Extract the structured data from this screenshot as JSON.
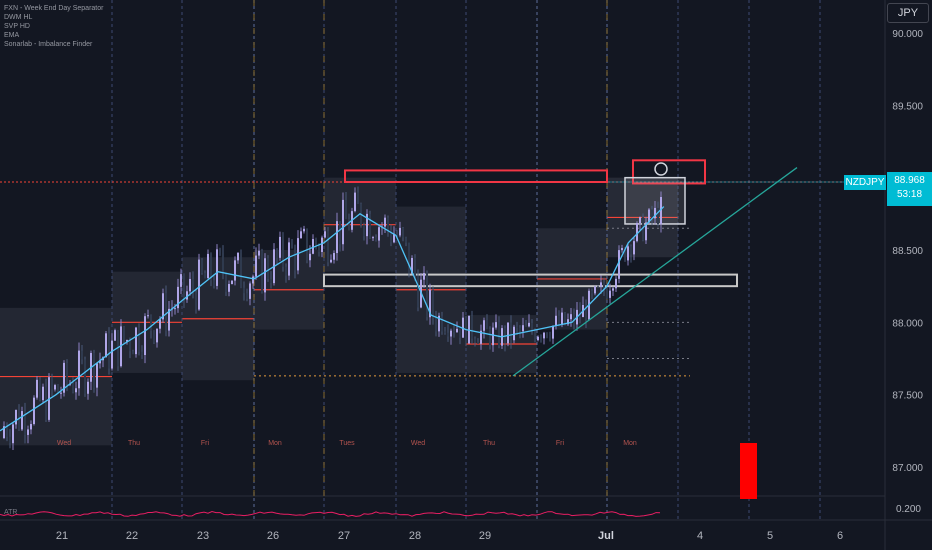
{
  "indicators": [
    "FXN - Week End Day Separator",
    "DWM HL",
    "SVP HD",
    "EMA",
    "Sonarlab - Imbalance Finder"
  ],
  "currency": "JPY",
  "symbol": "NZDJPY",
  "last_price": "88.968",
  "countdown": "53:18",
  "atr_label": "ATR",
  "chart_data": {
    "type": "candlestick",
    "title": "",
    "y_axis": {
      "ticks": [
        "90.000",
        "89.500",
        "89.000",
        "88.500",
        "88.000",
        "87.500",
        "87.000"
      ],
      "ylim": [
        86.85,
        90.1
      ]
    },
    "x_axis": {
      "ticks": [
        "21",
        "22",
        "23",
        "26",
        "27",
        "28",
        "29",
        "Jul",
        "4",
        "5",
        "6"
      ]
    },
    "day_labels": [
      "Wed",
      "Thu",
      "Fri",
      "Mon",
      "Tues",
      "Wed",
      "Thu",
      "Fri",
      "Mon"
    ],
    "atr_value": "0.200",
    "ema_line": [
      [
        0,
        87.25
      ],
      [
        0.5,
        87.5
      ],
      [
        1,
        87.8
      ],
      [
        1.5,
        87.95
      ],
      [
        2,
        88.15
      ],
      [
        2.5,
        88.35
      ],
      [
        3,
        88.3
      ],
      [
        3.5,
        88.45
      ],
      [
        4,
        88.55
      ],
      [
        4.5,
        88.75
      ],
      [
        5,
        88.6
      ],
      [
        5.5,
        88.05
      ],
      [
        6,
        87.95
      ],
      [
        6.5,
        87.9
      ],
      [
        7,
        87.95
      ],
      [
        7.5,
        88.0
      ],
      [
        8,
        88.25
      ],
      [
        8.3,
        88.55
      ],
      [
        8.8,
        88.8
      ]
    ],
    "daily_boxes": [
      {
        "day": "Wed",
        "high": 88.1,
        "low": 87.15
      },
      {
        "day": "Thu",
        "high": 88.35,
        "low": 87.65
      },
      {
        "day": "Fri",
        "high": 88.45,
        "low": 87.6
      },
      {
        "day": "Mon",
        "high": 88.5,
        "low": 87.95
      },
      {
        "day": "Tues",
        "high": 89.0,
        "low": 88.35
      },
      {
        "day": "Wed",
        "high": 88.8,
        "low": 87.65
      },
      {
        "day": "Thu",
        "high": 88.05,
        "low": 87.65
      },
      {
        "day": "Fri",
        "high": 88.65,
        "low": 87.95
      },
      {
        "day": "Mon",
        "high": 89.0,
        "low": 88.45
      }
    ],
    "red_zone": {
      "high": 89.05,
      "low": 88.97
    },
    "resistance_line": 88.97,
    "support_zone": {
      "high": 88.33,
      "low": 88.25
    },
    "dotted_levels": [
      88.65,
      87.75,
      87.63
    ],
    "trendline": [
      [
        7.1,
        87.63
      ],
      [
        10.9,
        89.07
      ]
    ]
  }
}
